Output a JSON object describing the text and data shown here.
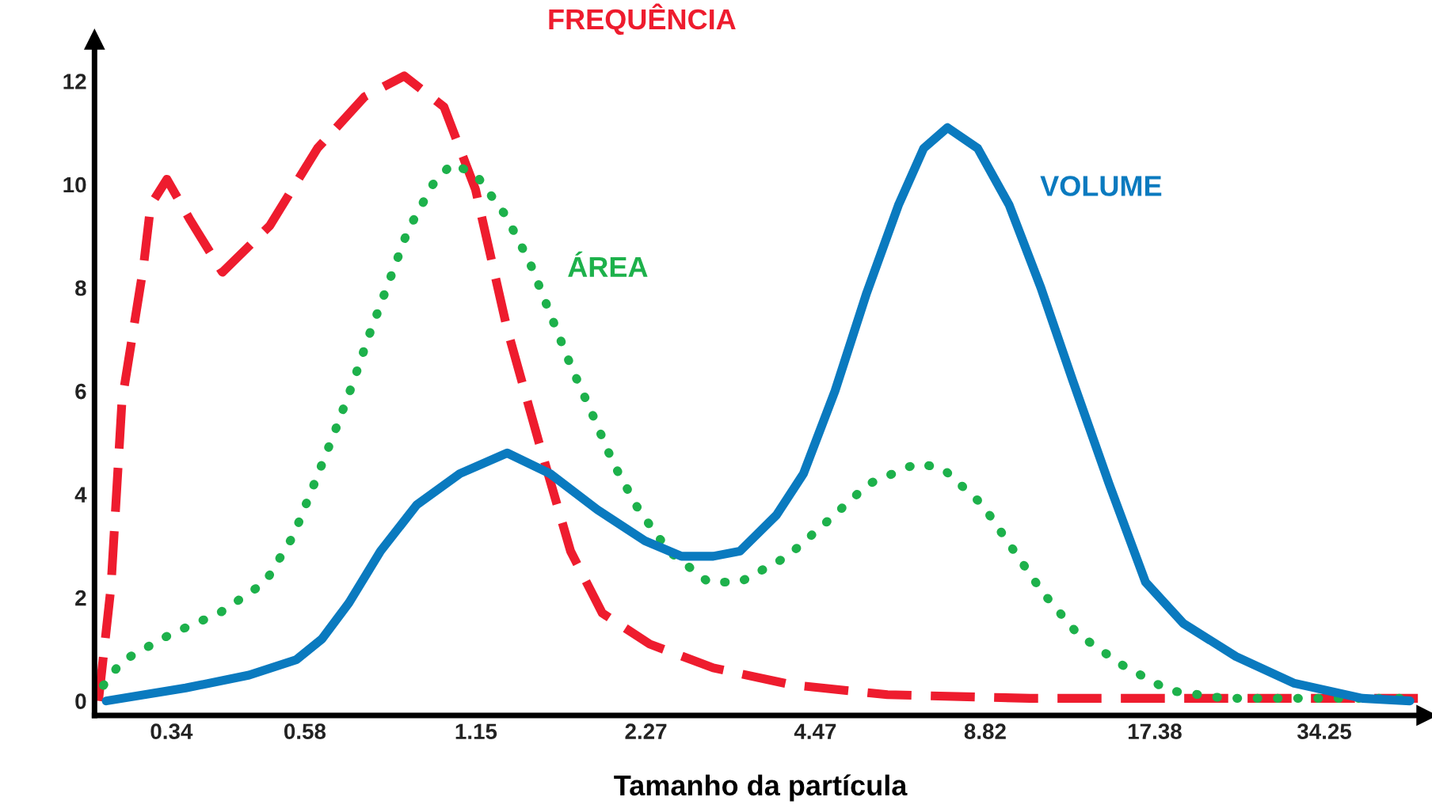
{
  "chart_data": {
    "type": "line",
    "xlabel": "Tamanho da partícula",
    "log": "x",
    "xlim": [
      0.25,
      51.5
    ],
    "ylim": [
      -0.28,
      12.8
    ],
    "xticks": [
      0.34,
      0.58,
      1.15,
      2.27,
      4.47,
      8.82,
      17.38,
      34.25
    ],
    "yticks": [
      0,
      2,
      4,
      6,
      8,
      10,
      12
    ],
    "grid": false,
    "legend": false,
    "series": [
      {
        "name": "FREQUÊNCIA",
        "color": "#ee1c2e",
        "line_style": "dashed",
        "x": [
          0.254,
          0.267,
          0.279,
          0.304,
          0.313,
          0.334,
          0.367,
          0.417,
          0.504,
          0.61,
          0.737,
          0.863,
          1.012,
          1.148,
          1.303,
          1.48,
          1.679,
          1.906,
          2.305,
          2.971,
          4.076,
          5.966,
          10.55,
          49.8
        ],
        "values": [
          0,
          2.2,
          5.8,
          8.4,
          9.6,
          10.1,
          9.3,
          8.3,
          9.2,
          10.7,
          11.7,
          12.1,
          11.5,
          9.9,
          7.2,
          5.0,
          2.9,
          1.7,
          1.1,
          0.64,
          0.31,
          0.12,
          0.05,
          0.05
        ]
      },
      {
        "name": "ÁREA",
        "color": "#1db14b",
        "line_style": "dotted",
        "x": [
          0.259,
          0.279,
          0.34,
          0.412,
          0.495,
          0.554,
          0.602,
          0.653,
          0.7,
          0.751,
          0.811,
          0.875,
          0.968,
          1.044,
          1.148,
          1.295,
          1.425,
          1.547,
          1.679,
          1.824,
          1.992,
          2.205,
          2.487,
          2.915,
          3.307,
          3.999,
          4.716,
          5.528,
          6.726,
          7.442,
          8.722,
          9.904,
          11.1,
          12.76,
          15.24,
          18.43,
          22.99,
          48.23
        ],
        "values": [
          0.3,
          0.77,
          1.3,
          1.7,
          2.3,
          3.2,
          4.2,
          5.2,
          6.1,
          7.1,
          8.1,
          9.1,
          10.0,
          10.4,
          10.2,
          9.4,
          8.5,
          7.5,
          6.5,
          5.6,
          4.6,
          3.7,
          2.9,
          2.3,
          2.3,
          2.8,
          3.5,
          4.2,
          4.6,
          4.5,
          3.8,
          2.9,
          2.1,
          1.3,
          0.7,
          0.2,
          0.05,
          0.05
        ]
      },
      {
        "name": "VOLUME",
        "color": "#0a7abf",
        "line_style": "solid",
        "x": [
          0.262,
          0.36,
          0.464,
          0.561,
          0.621,
          0.692,
          0.785,
          0.908,
          1.078,
          1.303,
          1.547,
          1.87,
          2.261,
          2.617,
          2.971,
          3.307,
          3.827,
          4.263,
          4.836,
          5.49,
          6.234,
          6.897,
          7.584,
          8.559,
          9.709,
          11.02,
          12.52,
          14.48,
          16.75,
          19.49,
          24.05,
          30.39,
          39.88,
          48.23
        ],
        "values": [
          0,
          0.25,
          0.5,
          0.8,
          1.2,
          1.9,
          2.9,
          3.8,
          4.4,
          4.8,
          4.4,
          3.7,
          3.1,
          2.8,
          2.8,
          2.9,
          3.6,
          4.4,
          6.0,
          7.9,
          9.6,
          10.7,
          11.1,
          10.7,
          9.6,
          8.0,
          6.2,
          4.2,
          2.3,
          1.5,
          0.86,
          0.34,
          0.05,
          0
        ]
      }
    ]
  }
}
